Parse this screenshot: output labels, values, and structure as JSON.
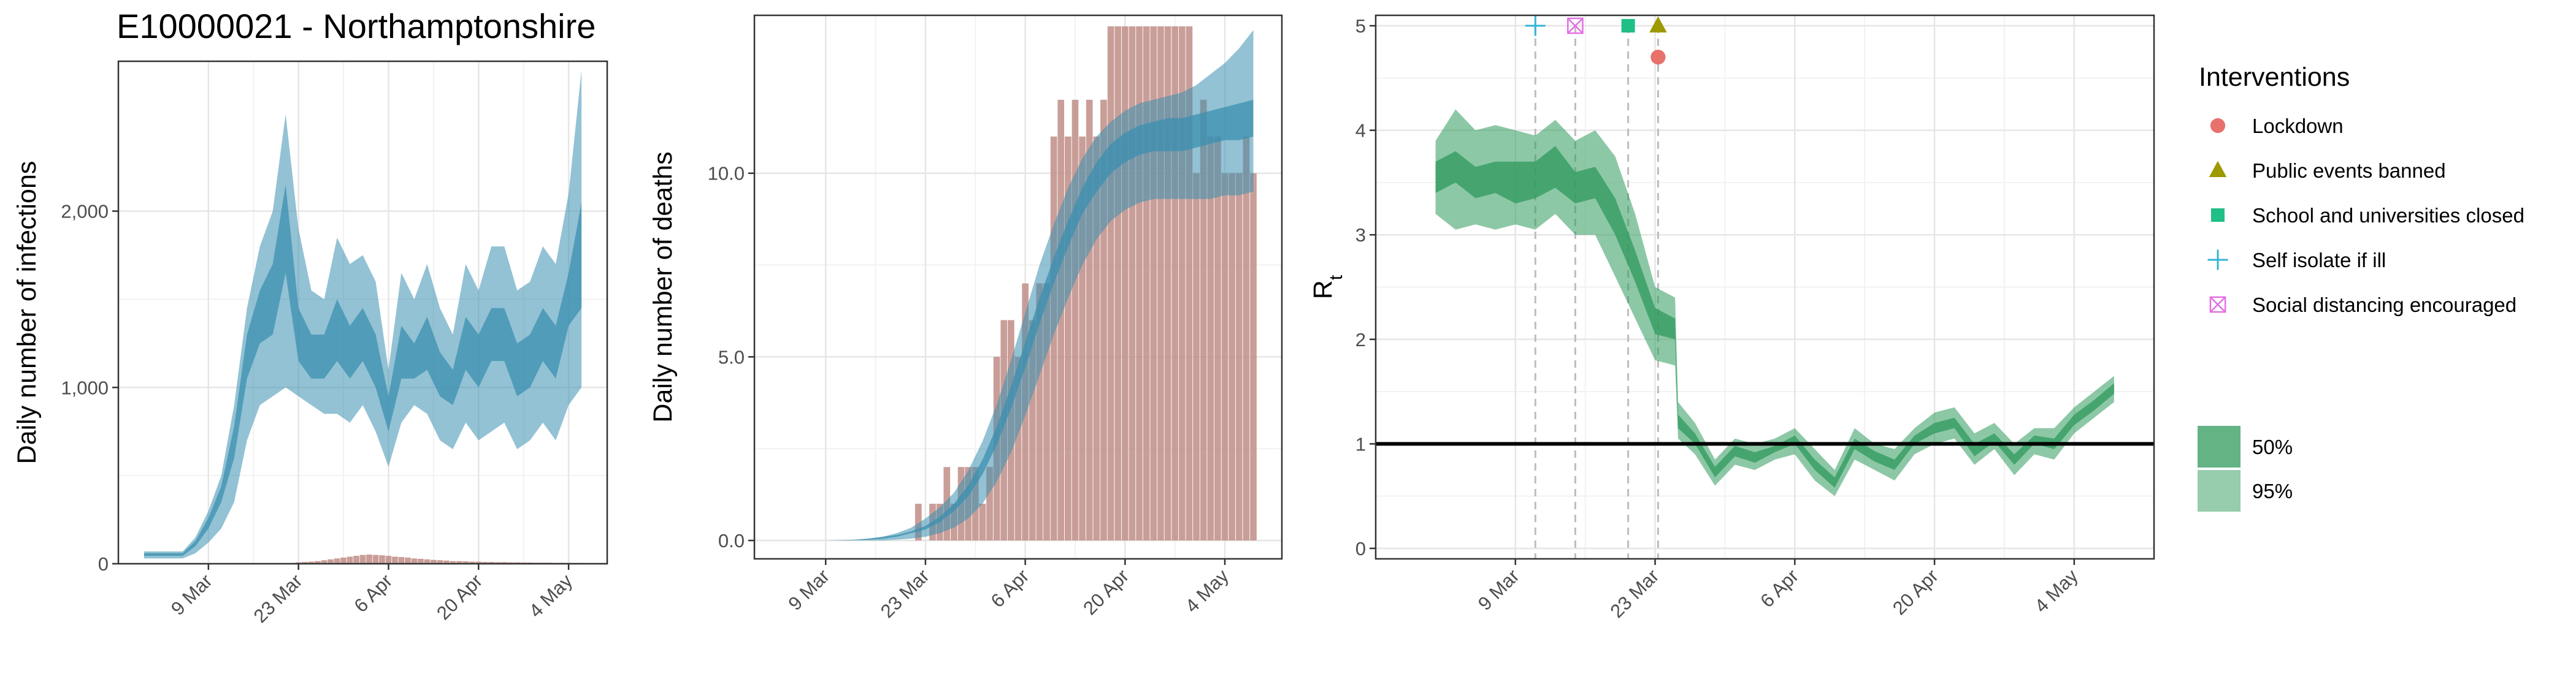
{
  "title": "E10000021 - Northamptonshire",
  "colors": {
    "infection": "#3b8fb0",
    "bars": "#c08d86",
    "rt_green": "#2f9a5c",
    "lockdown": "#e8716b",
    "events": "#9d9a00",
    "schools": "#1fbf86",
    "isolate": "#33b6d6",
    "distancing": "#e36fe3"
  },
  "chart_data": [
    {
      "id": "infections",
      "type": "area",
      "ylabel": "Daily number of infections",
      "xlabel": "",
      "ylim": [
        0,
        2850
      ],
      "yticks": [
        0,
        1000,
        2000
      ],
      "ytick_labels": [
        "0",
        "1,000",
        "2,000"
      ],
      "xlim": [
        -14,
        62
      ],
      "xticks": [
        0,
        14,
        28,
        42,
        56
      ],
      "xtick_labels": [
        "9 Mar",
        "23 Mar",
        "6 Apr",
        "20 Apr",
        "4 May"
      ],
      "series": [
        {
          "name": "95%",
          "x": [
            -10,
            -8,
            -6,
            -4,
            -2,
            0,
            2,
            4,
            6,
            8,
            10,
            12,
            14,
            16,
            18,
            20,
            22,
            24,
            26,
            28,
            30,
            32,
            34,
            36,
            38,
            40,
            42,
            44,
            46,
            48,
            50,
            52,
            54,
            56,
            58
          ],
          "lower": [
            30,
            30,
            30,
            30,
            60,
            120,
            200,
            350,
            700,
            900,
            950,
            1000,
            950,
            900,
            850,
            850,
            800,
            900,
            750,
            550,
            800,
            900,
            850,
            700,
            650,
            800,
            700,
            750,
            800,
            650,
            700,
            800,
            700,
            900,
            1000
          ],
          "upper": [
            70,
            70,
            70,
            70,
            150,
            300,
            500,
            900,
            1450,
            1800,
            2000,
            2550,
            1900,
            1550,
            1500,
            1850,
            1700,
            1750,
            1600,
            1100,
            1650,
            1500,
            1700,
            1450,
            1300,
            1700,
            1550,
            1800,
            1800,
            1550,
            1600,
            1800,
            1700,
            2100,
            2800
          ]
        },
        {
          "name": "50%",
          "x": [
            -10,
            -8,
            -6,
            -4,
            -2,
            0,
            2,
            4,
            6,
            8,
            10,
            12,
            14,
            16,
            18,
            20,
            22,
            24,
            26,
            28,
            30,
            32,
            34,
            36,
            38,
            40,
            42,
            44,
            46,
            48,
            50,
            52,
            54,
            56,
            58
          ],
          "lower": [
            45,
            45,
            45,
            45,
            100,
            200,
            350,
            600,
            1050,
            1250,
            1300,
            1650,
            1150,
            1050,
            1050,
            1150,
            1050,
            1150,
            1000,
            750,
            1050,
            1050,
            1100,
            950,
            900,
            1100,
            1000,
            1150,
            1150,
            950,
            1000,
            1150,
            1050,
            1350,
            1450
          ],
          "upper": [
            60,
            60,
            60,
            60,
            130,
            260,
            440,
            780,
            1300,
            1550,
            1700,
            2150,
            1450,
            1300,
            1300,
            1500,
            1350,
            1450,
            1300,
            950,
            1350,
            1250,
            1400,
            1200,
            1100,
            1400,
            1300,
            1450,
            1450,
            1250,
            1300,
            1450,
            1350,
            1650,
            2050
          ]
        }
      ],
      "bars": {
        "x": [
          14,
          15,
          16,
          17,
          18,
          19,
          20,
          21,
          22,
          23,
          24,
          25,
          26,
          27,
          28,
          29,
          30,
          31,
          32,
          33,
          34,
          35,
          36,
          37,
          38,
          39,
          40,
          41,
          42,
          43,
          44,
          45,
          46,
          47,
          48,
          49,
          50,
          51,
          52,
          53,
          54,
          55,
          56,
          57,
          58
        ],
        "values": [
          8,
          10,
          12,
          15,
          20,
          25,
          30,
          35,
          40,
          45,
          50,
          52,
          50,
          48,
          45,
          40,
          38,
          35,
          30,
          28,
          25,
          22,
          20,
          18,
          15,
          15,
          14,
          12,
          12,
          10,
          10,
          9,
          9,
          8,
          8,
          7,
          7,
          6,
          6,
          6,
          5,
          5,
          5,
          4,
          4
        ]
      }
    },
    {
      "id": "deaths",
      "type": "area",
      "ylabel": "Daily number of deaths",
      "xlabel": "",
      "ylim": [
        -0.5,
        14.3
      ],
      "yticks": [
        0,
        5,
        10
      ],
      "ytick_labels": [
        "0.0",
        "5.0",
        "10.0"
      ],
      "xlim": [
        -10,
        64
      ],
      "xticks": [
        0,
        14,
        28,
        42,
        56
      ],
      "xtick_labels": [
        "9 Mar",
        "23 Mar",
        "6 Apr",
        "20 Apr",
        "4 May"
      ],
      "series": [
        {
          "name": "95%",
          "x": [
            0,
            2,
            4,
            6,
            8,
            10,
            12,
            14,
            16,
            18,
            20,
            22,
            24,
            26,
            28,
            30,
            32,
            34,
            36,
            38,
            40,
            42,
            44,
            46,
            48,
            50,
            52,
            54,
            56,
            58,
            60
          ],
          "lower": [
            0,
            0,
            0,
            0,
            0,
            0.02,
            0.05,
            0.1,
            0.2,
            0.35,
            0.6,
            1.0,
            1.6,
            2.4,
            3.4,
            4.5,
            5.6,
            6.6,
            7.5,
            8.2,
            8.7,
            9.0,
            9.2,
            9.3,
            9.3,
            9.3,
            9.3,
            9.3,
            9.4,
            9.4,
            9.5
          ],
          "upper": [
            0,
            0,
            0.02,
            0.05,
            0.1,
            0.2,
            0.35,
            0.6,
            0.9,
            1.3,
            1.9,
            2.7,
            3.7,
            4.9,
            6.2,
            7.5,
            8.6,
            9.6,
            10.4,
            11.0,
            11.4,
            11.7,
            11.9,
            12.0,
            12.1,
            12.2,
            12.4,
            12.7,
            13.0,
            13.4,
            13.9
          ]
        },
        {
          "name": "50%",
          "x": [
            0,
            2,
            4,
            6,
            8,
            10,
            12,
            14,
            16,
            18,
            20,
            22,
            24,
            26,
            28,
            30,
            32,
            34,
            36,
            38,
            40,
            42,
            44,
            46,
            48,
            50,
            52,
            54,
            56,
            58,
            60
          ],
          "lower": [
            0,
            0,
            0.01,
            0.02,
            0.05,
            0.1,
            0.2,
            0.3,
            0.5,
            0.8,
            1.2,
            1.8,
            2.6,
            3.6,
            4.7,
            5.9,
            7.0,
            8.0,
            8.9,
            9.5,
            10.0,
            10.3,
            10.5,
            10.6,
            10.6,
            10.6,
            10.7,
            10.8,
            10.9,
            10.9,
            11.0
          ],
          "upper": [
            0,
            0.01,
            0.02,
            0.05,
            0.1,
            0.15,
            0.25,
            0.4,
            0.65,
            1.0,
            1.5,
            2.2,
            3.1,
            4.2,
            5.4,
            6.6,
            7.7,
            8.7,
            9.6,
            10.3,
            10.8,
            11.1,
            11.3,
            11.4,
            11.5,
            11.5,
            11.6,
            11.7,
            11.8,
            11.9,
            12.0
          ]
        }
      ],
      "bars": {
        "x": [
          13,
          14,
          15,
          16,
          17,
          18,
          19,
          20,
          21,
          22,
          23,
          24,
          25,
          26,
          27,
          28,
          29,
          30,
          31,
          32,
          33,
          34,
          35,
          36,
          37,
          38,
          39,
          40,
          41,
          42,
          43,
          44,
          45,
          46,
          47,
          48,
          49,
          50,
          51,
          52,
          53,
          54,
          55,
          56,
          57,
          58,
          59,
          60
        ],
        "values": [
          1,
          0,
          1,
          1,
          2,
          1,
          2,
          2,
          2,
          1,
          2,
          5,
          6,
          6,
          5,
          7,
          6,
          7,
          7,
          11,
          12,
          11,
          12,
          11,
          12,
          11,
          12,
          14,
          14,
          14,
          14,
          14,
          14,
          14,
          14,
          14,
          14,
          14,
          14,
          10,
          12,
          11,
          11,
          10,
          10,
          10,
          11,
          10
        ]
      }
    },
    {
      "id": "rt",
      "type": "area",
      "ylabel": "R",
      "ylabel_sub": "t",
      "xlabel": "",
      "ylim": [
        -0.1,
        5.1
      ],
      "yticks": [
        0,
        1,
        2,
        3,
        4,
        5
      ],
      "ytick_labels": [
        "0",
        "1",
        "2",
        "3",
        "4",
        "5"
      ],
      "xlim": [
        -14,
        64
      ],
      "xticks": [
        0,
        14,
        28,
        42,
        56
      ],
      "xtick_labels": [
        "9 Mar",
        "23 Mar",
        "6 Apr",
        "20 Apr",
        "4 May"
      ],
      "reference_line": 1,
      "series": [
        {
          "name": "95%",
          "x": [
            -8,
            -6,
            -4,
            -2,
            0,
            2,
            4,
            6,
            8,
            10,
            12,
            14,
            16,
            16.3,
            18,
            20,
            22,
            24,
            26,
            28,
            30,
            32,
            34,
            36,
            38,
            40,
            42,
            44,
            46,
            48,
            50,
            52,
            54,
            56,
            58,
            60
          ],
          "lower": [
            3.2,
            3.05,
            3.1,
            3.05,
            3.1,
            3.05,
            3.2,
            3.0,
            3.0,
            2.6,
            2.2,
            1.8,
            1.75,
            1.05,
            0.9,
            0.6,
            0.8,
            0.75,
            0.85,
            0.9,
            0.65,
            0.5,
            0.85,
            0.75,
            0.65,
            0.9,
            1.0,
            1.05,
            0.8,
            0.95,
            0.7,
            0.9,
            0.85,
            1.1,
            1.25,
            1.4
          ],
          "upper": [
            3.9,
            4.2,
            4.0,
            4.05,
            4.0,
            3.95,
            4.1,
            3.9,
            4.0,
            3.75,
            3.2,
            2.5,
            2.4,
            1.4,
            1.2,
            0.85,
            1.05,
            1.0,
            1.05,
            1.15,
            0.95,
            0.75,
            1.15,
            1.0,
            0.95,
            1.15,
            1.3,
            1.35,
            1.1,
            1.2,
            1.0,
            1.15,
            1.15,
            1.35,
            1.5,
            1.65
          ]
        },
        {
          "name": "50%",
          "x": [
            -8,
            -6,
            -4,
            -2,
            0,
            2,
            4,
            6,
            8,
            10,
            12,
            14,
            16,
            16.3,
            18,
            20,
            22,
            24,
            26,
            28,
            30,
            32,
            34,
            36,
            38,
            40,
            42,
            44,
            46,
            48,
            50,
            52,
            54,
            56,
            58,
            60
          ],
          "lower": [
            3.4,
            3.5,
            3.35,
            3.4,
            3.3,
            3.35,
            3.45,
            3.3,
            3.35,
            3.0,
            2.55,
            2.05,
            2.0,
            1.15,
            1.0,
            0.68,
            0.88,
            0.82,
            0.92,
            1.0,
            0.75,
            0.58,
            0.95,
            0.83,
            0.75,
            1.0,
            1.1,
            1.15,
            0.88,
            1.02,
            0.8,
            1.0,
            0.95,
            1.18,
            1.32,
            1.48
          ],
          "upper": [
            3.7,
            3.8,
            3.65,
            3.7,
            3.7,
            3.7,
            3.85,
            3.6,
            3.65,
            3.35,
            2.85,
            2.3,
            2.2,
            1.28,
            1.1,
            0.78,
            0.98,
            0.92,
            0.98,
            1.08,
            0.85,
            0.68,
            1.05,
            0.93,
            0.85,
            1.08,
            1.2,
            1.25,
            1.0,
            1.1,
            0.9,
            1.08,
            1.05,
            1.28,
            1.42,
            1.58
          ]
        }
      ],
      "interventions": [
        {
          "label": "Self isolate if ill",
          "x": 2,
          "y": 5,
          "marker": "plus"
        },
        {
          "label": "Social distancing encouraged",
          "x": 6,
          "y": 5,
          "marker": "boxx"
        },
        {
          "label": "School and universities closed",
          "x": 11.3,
          "y": 5,
          "marker": "square"
        },
        {
          "label": "Public events banned",
          "x": 14.3,
          "y": 5,
          "marker": "triangle"
        },
        {
          "label": "Lockdown",
          "x": 14.3,
          "y": 4.7,
          "marker": "circle"
        }
      ]
    }
  ],
  "legend": {
    "interventions_title": "Interventions",
    "interventions": [
      {
        "label": "Lockdown",
        "marker": "circle"
      },
      {
        "label": "Public events banned",
        "marker": "triangle"
      },
      {
        "label": "School and universities closed",
        "marker": "square"
      },
      {
        "label": "Self isolate if ill",
        "marker": "plus"
      },
      {
        "label": "Social distancing encouraged",
        "marker": "boxx"
      }
    ],
    "bands": [
      {
        "label": "50%"
      },
      {
        "label": "95%"
      }
    ]
  }
}
